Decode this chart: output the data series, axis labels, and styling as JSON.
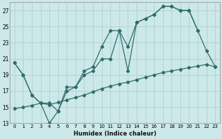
{
  "xlabel": "Humidex (Indice chaleur)",
  "bg_color": "#cce8e8",
  "grid_color": "#aacccc",
  "line_color": "#2e6e6a",
  "ylim": [
    13,
    28
  ],
  "yticks": [
    13,
    15,
    17,
    19,
    21,
    23,
    25,
    27
  ],
  "xlim": [
    -0.5,
    23.5
  ],
  "xticks": [
    0,
    1,
    2,
    3,
    4,
    5,
    6,
    7,
    8,
    9,
    10,
    11,
    12,
    13,
    14,
    15,
    16,
    17,
    18,
    19,
    20,
    21,
    22,
    23
  ],
  "curve1_x": [
    0,
    1,
    2,
    3,
    4,
    5,
    6,
    7,
    8,
    9,
    10,
    11,
    12,
    13,
    14,
    15,
    16,
    17,
    18,
    19,
    20,
    21,
    22,
    23
  ],
  "curve1_y": [
    20.5,
    19.0,
    16.5,
    15.5,
    13.0,
    14.5,
    17.5,
    17.5,
    19.5,
    20.0,
    22.5,
    24.5,
    24.5,
    22.5,
    25.5,
    26.0,
    26.5,
    27.5,
    27.5,
    27.0,
    27.0,
    24.5,
    22.0,
    20.0
  ],
  "curve2_x": [
    0,
    1,
    2,
    3,
    4,
    5,
    6,
    7,
    8,
    9,
    10,
    11,
    12,
    13,
    14,
    15,
    16,
    17,
    18,
    19,
    20,
    21
  ],
  "curve2_y": [
    20.5,
    19.0,
    16.5,
    15.5,
    15.5,
    14.5,
    17.0,
    17.5,
    19.0,
    19.5,
    21.0,
    21.0,
    24.5,
    19.5,
    25.5,
    26.0,
    26.5,
    27.5,
    27.5,
    27.0,
    27.0,
    24.5
  ],
  "curve3_x": [
    0,
    1,
    2,
    3,
    4,
    5,
    6,
    7,
    8,
    9,
    10,
    11,
    12,
    13,
    14,
    15,
    16,
    17,
    18,
    19,
    20,
    21,
    22,
    23
  ],
  "curve3_y": [
    14.8,
    15.0,
    15.2,
    15.5,
    15.3,
    15.6,
    15.9,
    16.2,
    16.5,
    16.9,
    17.3,
    17.6,
    17.9,
    18.1,
    18.4,
    18.7,
    19.0,
    19.3,
    19.5,
    19.7,
    19.9,
    20.1,
    20.3,
    20.0
  ]
}
